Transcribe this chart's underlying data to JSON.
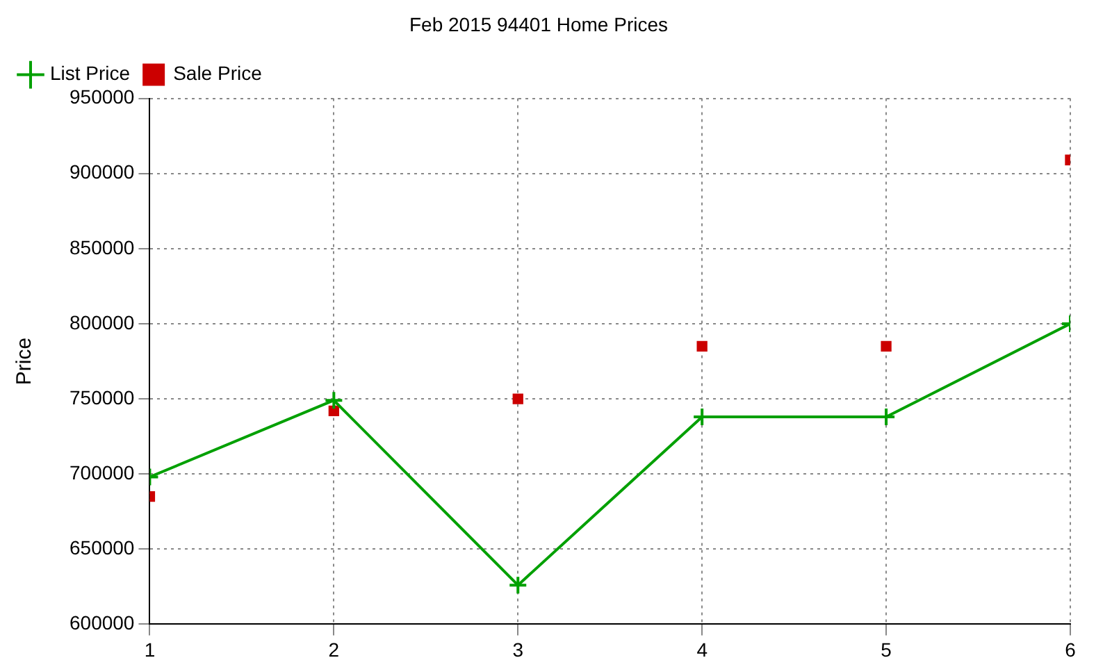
{
  "chart_data": {
    "type": "line",
    "title": "Feb 2015 94401 Home Prices",
    "ylabel": "Price",
    "x": [
      1,
      2,
      3,
      4,
      5,
      6
    ],
    "xlim": [
      1,
      6
    ],
    "xticks": [
      1,
      2,
      3,
      4,
      5,
      6
    ],
    "ylim": [
      600000,
      950000
    ],
    "yticks": [
      600000,
      650000,
      700000,
      750000,
      800000,
      850000,
      900000,
      950000
    ],
    "grid": true,
    "legend": "top left",
    "series": [
      {
        "name": "List Price",
        "color": "#00a000",
        "marker": "cross",
        "line_style": "solid",
        "values": [
          698000,
          749000,
          626000,
          738000,
          738000,
          800000
        ]
      },
      {
        "name": "Sale Price",
        "type": "scatter",
        "color": "#cc0000",
        "marker": "square",
        "values": [
          685000,
          742000,
          750000,
          785000,
          785000,
          909000
        ]
      }
    ]
  }
}
